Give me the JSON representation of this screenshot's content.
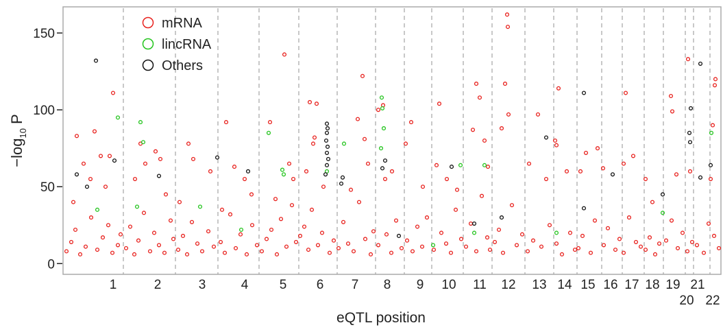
{
  "chart_data": {
    "type": "scatter",
    "xlabel": "eQTL position",
    "ylabel": {
      "text": "−log",
      "subscript": "10",
      "suffix": "P"
    },
    "xlim": [
      0,
      960
    ],
    "ylim": [
      -7,
      167
    ],
    "yticks": [
      0,
      50,
      100,
      150
    ],
    "xticks": [
      {
        "value": 73,
        "label": "1"
      },
      {
        "value": 138,
        "label": "2"
      },
      {
        "value": 203,
        "label": "3"
      },
      {
        "value": 265,
        "label": "4"
      },
      {
        "value": 321,
        "label": "5"
      },
      {
        "value": 375,
        "label": "6"
      },
      {
        "value": 426,
        "label": "7"
      },
      {
        "value": 473,
        "label": "8"
      },
      {
        "value": 521,
        "label": "9"
      },
      {
        "value": 563,
        "label": "10"
      },
      {
        "value": 608,
        "label": "11"
      },
      {
        "value": 650,
        "label": "12"
      },
      {
        "value": 695,
        "label": "13"
      },
      {
        "value": 732,
        "label": "14"
      },
      {
        "value": 766,
        "label": "15"
      },
      {
        "value": 799,
        "label": "16"
      },
      {
        "value": 830,
        "label": "17"
      },
      {
        "value": 860,
        "label": "18"
      },
      {
        "value": 890,
        "label": "19"
      },
      {
        "value": 910,
        "label": "20"
      },
      {
        "value": 926,
        "label": "21"
      },
      {
        "value": 948,
        "label": "22"
      }
    ],
    "chromosome_boundaries": [
      88,
      164,
      226,
      286,
      344,
      400,
      456,
      498,
      538,
      584,
      626,
      674,
      716,
      750,
      786,
      816,
      848,
      876,
      908,
      920,
      944
    ],
    "legend": "upper left",
    "series": [
      {
        "name": "mRNA",
        "color": "#e8201c",
        "x": [
          20,
          30,
          46,
          55,
          73,
          68,
          62,
          15,
          40,
          113,
          135,
          142,
          120,
          105,
          150,
          183,
          190,
          170,
          215,
          238,
          250,
          265,
          275,
          232,
          323,
          302,
          330,
          336,
          310,
          360,
          370,
          367,
          365,
          355,
          380,
          430,
          440,
          437,
          445,
          420,
          460,
          467,
          480,
          470,
          508,
          500,
          525,
          549,
          545,
          560,
          575,
          603,
          608,
          598,
          615,
          620,
          648,
          649,
          645,
          650,
          640,
          693,
          680,
          705,
          723,
          718,
          720,
          735,
          763,
          755,
          780,
          788,
          821,
          832,
          818,
          850,
          860,
          887,
          889,
          895,
          912,
          915,
          952,
          951,
          948,
          945,
          5,
          12,
          18,
          25,
          33,
          41,
          50,
          58,
          66,
          72,
          80,
          84,
          92,
          98,
          104,
          110,
          118,
          127,
          133,
          140,
          148,
          157,
          161,
          168,
          175,
          181,
          188,
          196,
          203,
          212,
          220,
          230,
          236,
          244,
          252,
          259,
          268,
          276,
          283,
          290,
          297,
          304,
          312,
          318,
          326,
          334,
          340,
          346,
          352,
          358,
          363,
          372,
          378,
          389,
          395,
          402,
          409,
          416,
          424,
          432,
          441,
          449,
          453,
          460,
          472,
          479,
          486,
          494,
          502,
          510,
          517,
          524,
          531,
          541,
          552,
          559,
          566,
          573,
          581,
          588,
          595,
          603,
          611,
          619,
          623,
          630,
          636,
          642,
          655,
          662,
          670,
          678,
          686,
          698,
          710,
          720,
          728,
          740,
          747,
          752,
          758,
          770,
          776,
          789,
          795,
          806,
          812,
          818,
          826,
          836,
          843,
          850,
          856,
          864,
          870,
          880,
          888,
          897,
          904,
          911,
          918,
          925,
          935,
          942,
          950,
          957
        ],
        "values": [
          83,
          65,
          86,
          70,
          111,
          70,
          50,
          40,
          55,
          78,
          73,
          68,
          65,
          55,
          45,
          78,
          68,
          40,
          60,
          92,
          63,
          55,
          45,
          35,
          136,
          92,
          65,
          55,
          42,
          105,
          104,
          82,
          78,
          60,
          50,
          94,
          81,
          122,
          65,
          48,
          100,
          103,
          60,
          55,
          92,
          78,
          50,
          104,
          64,
          55,
          48,
          117,
          108,
          87,
          80,
          63,
          162,
          154,
          117,
          97,
          88,
          97,
          65,
          55,
          114,
          80,
          77,
          60,
          72,
          60,
          75,
          62,
          111,
          70,
          65,
          55,
          40,
          109,
          99,
          58,
          133,
          60,
          120,
          116,
          90,
          55,
          8,
          14,
          22,
          6,
          11,
          30,
          9,
          17,
          25,
          7,
          12,
          19,
          10,
          24,
          6,
          15,
          33,
          8,
          20,
          12,
          7,
          28,
          16,
          9,
          18,
          6,
          27,
          13,
          8,
          21,
          11,
          14,
          7,
          32,
          10,
          19,
          6,
          25,
          12,
          8,
          16,
          22,
          6,
          29,
          11,
          38,
          14,
          18,
          24,
          9,
          35,
          12,
          20,
          7,
          15,
          10,
          27,
          13,
          8,
          40,
          16,
          6,
          21,
          12,
          19,
          7,
          28,
          10,
          15,
          8,
          24,
          11,
          30,
          9,
          20,
          13,
          7,
          35,
          16,
          11,
          26,
          8,
          44,
          17,
          9,
          14,
          22,
          7,
          38,
          12,
          19,
          8,
          15,
          11,
          25,
          13,
          6,
          20,
          9,
          10,
          18,
          7,
          28,
          12,
          23,
          9,
          16,
          7,
          30,
          14,
          11,
          9,
          17,
          6,
          13,
          15,
          28,
          10,
          20,
          8,
          14,
          12,
          7,
          26,
          18,
          10
        ]
      },
      {
        "name": "lincRNA",
        "color": "#22c41c",
        "x": [
          80,
          113,
          117,
          108,
          300,
          320,
          322,
          410,
          385,
          465,
          466,
          468,
          464,
          580,
          615,
          875,
          946,
          200,
          50,
          260,
          720,
          540,
          600
        ],
        "values": [
          95,
          92,
          79,
          37,
          85,
          61,
          58,
          78,
          60,
          108,
          101,
          88,
          75,
          64,
          64,
          33,
          85,
          37,
          35,
          22,
          20,
          12,
          20
        ]
      },
      {
        "name": "Others",
        "color": "#111111",
        "x": [
          48,
          75,
          20,
          35,
          225,
          140,
          270,
          385,
          386,
          385,
          384,
          386,
          385,
          387,
          385,
          383,
          408,
          406,
          470,
          466,
          567,
          760,
          705,
          916,
          914,
          915,
          930,
          945,
          930,
          875,
          802,
          640,
          490,
          600,
          760
        ],
        "values": [
          132,
          67,
          58,
          50,
          69,
          57,
          60,
          91,
          88,
          85,
          80,
          76,
          72,
          68,
          64,
          58,
          56,
          52,
          67,
          62,
          63,
          111,
          82,
          101,
          85,
          79,
          130,
          64,
          56,
          45,
          58,
          30,
          18,
          26,
          36
        ]
      }
    ]
  }
}
